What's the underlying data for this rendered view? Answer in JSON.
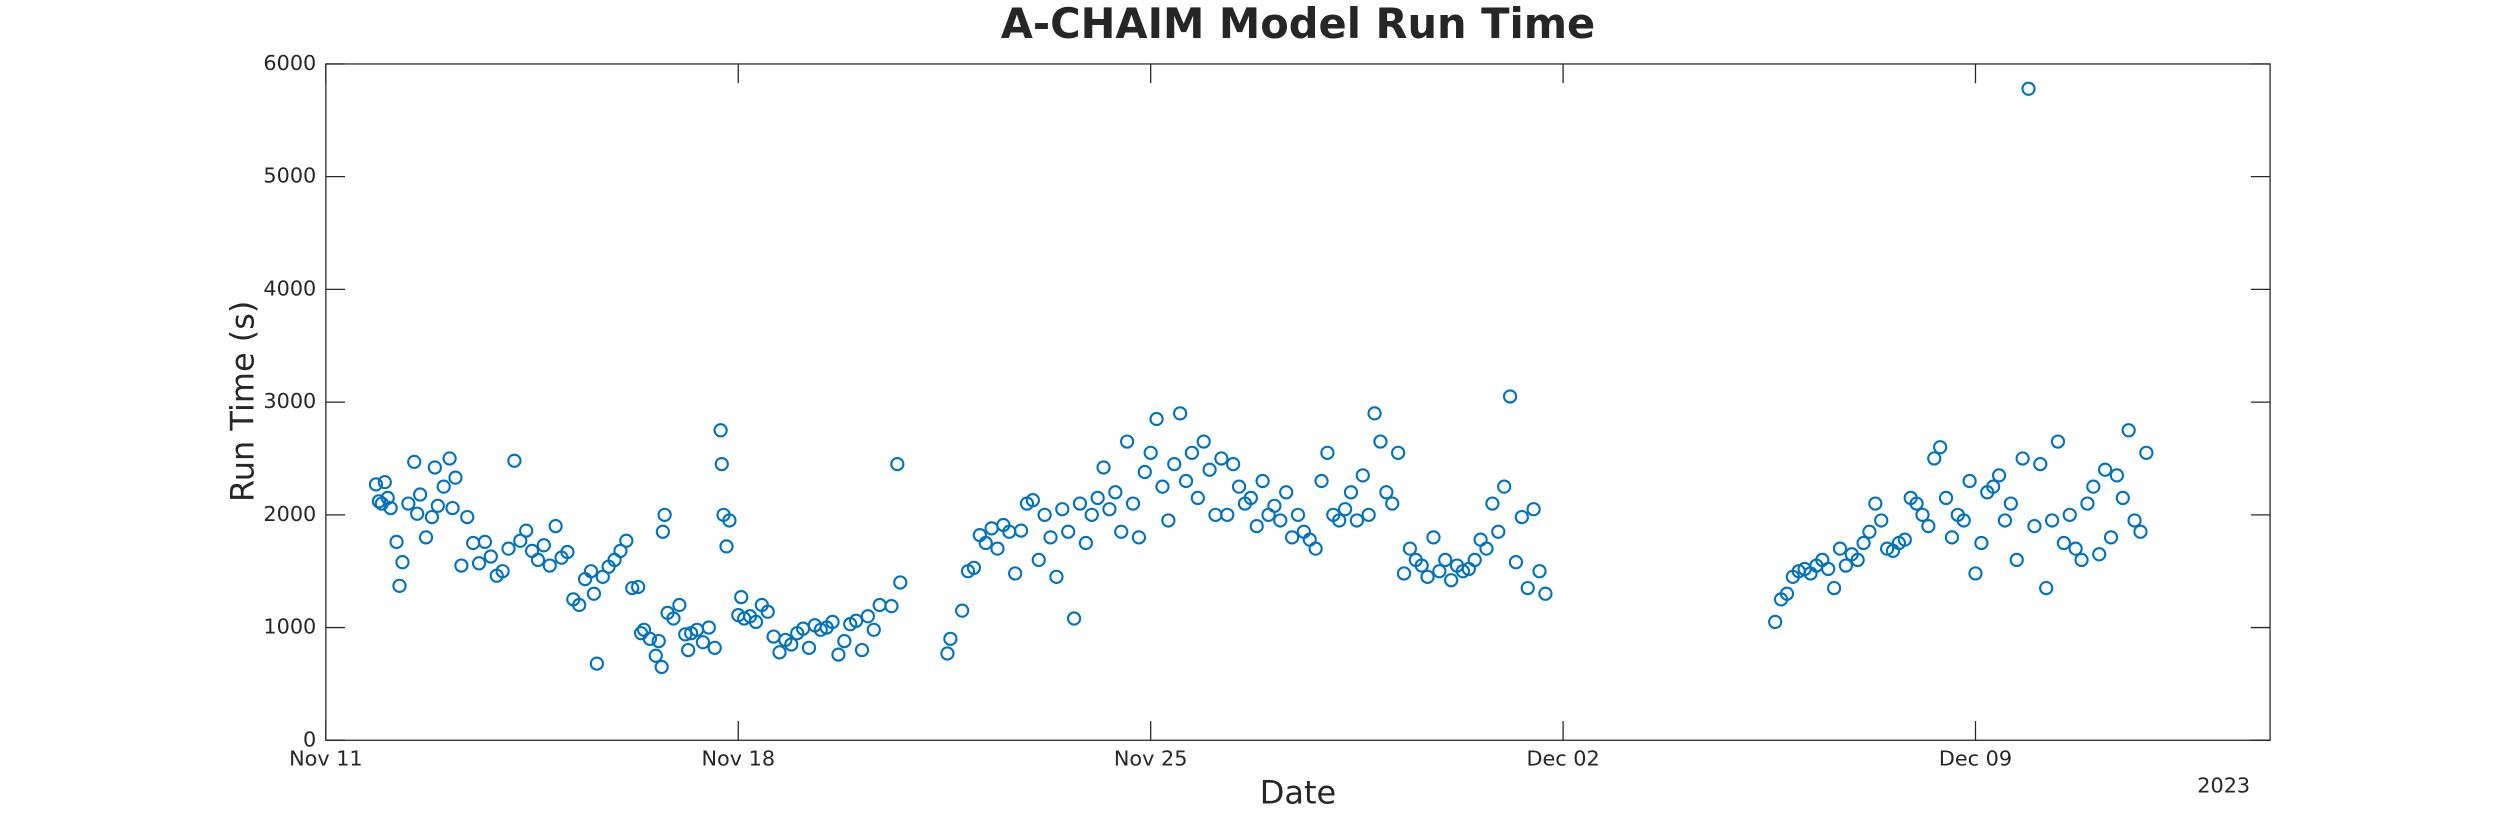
{
  "chart_data": {
    "type": "scatter",
    "title": "A-CHAIM Model Run Time",
    "x_label": "Date",
    "y_label": "Run Time (s)",
    "x_year_label": "2023",
    "xlim": [
      0,
      33
    ],
    "ylim": [
      0,
      6000
    ],
    "xticks": [
      {
        "value": 0,
        "label": "Nov 11"
      },
      {
        "value": 7,
        "label": "Nov 18"
      },
      {
        "value": 14,
        "label": "Nov 25"
      },
      {
        "value": 21,
        "label": "Dec 02"
      },
      {
        "value": 28,
        "label": "Dec 09"
      }
    ],
    "yticks": [
      0,
      1000,
      2000,
      3000,
      4000,
      5000,
      6000
    ],
    "grid": false,
    "series": [
      {
        "color": "#0072bd",
        "x": [
          0.85,
          0.9,
          0.95,
          1.0,
          1.05,
          1.1,
          1.2,
          1.25,
          1.3,
          1.4,
          1.5,
          1.55,
          1.6,
          1.7,
          1.8,
          1.85,
          1.9,
          2.0,
          2.1,
          2.15,
          2.2,
          2.3,
          2.4,
          2.5,
          2.6,
          2.7,
          2.8,
          2.9,
          3.0,
          3.1,
          3.2,
          3.3,
          3.4,
          3.5,
          3.6,
          3.7,
          3.8,
          3.9,
          4.0,
          4.1,
          4.2,
          4.3,
          4.4,
          4.5,
          4.55,
          4.6,
          4.7,
          4.8,
          4.9,
          5.0,
          5.1,
          5.2,
          5.3,
          5.35,
          5.4,
          5.5,
          5.6,
          5.65,
          5.7,
          5.72,
          5.75,
          5.8,
          5.9,
          6.0,
          6.1,
          6.15,
          6.2,
          6.3,
          6.4,
          6.5,
          6.6,
          6.7,
          6.72,
          6.75,
          6.8,
          6.85,
          7.0,
          7.05,
          7.1,
          7.2,
          7.3,
          7.4,
          7.5,
          7.6,
          7.7,
          7.8,
          7.9,
          8.0,
          8.1,
          8.2,
          8.3,
          8.4,
          8.5,
          8.6,
          8.7,
          8.8,
          8.9,
          9.0,
          9.1,
          9.2,
          9.3,
          9.4,
          9.6,
          9.7,
          9.75,
          10.55,
          10.6,
          10.8,
          10.9,
          11.0,
          11.1,
          11.2,
          11.3,
          11.4,
          11.5,
          11.6,
          11.7,
          11.8,
          11.9,
          12.0,
          12.1,
          12.2,
          12.3,
          12.4,
          12.5,
          12.6,
          12.7,
          12.8,
          12.9,
          13.0,
          13.1,
          13.2,
          13.3,
          13.4,
          13.5,
          13.6,
          13.7,
          13.8,
          13.9,
          14.0,
          14.1,
          14.2,
          14.3,
          14.4,
          14.5,
          14.6,
          14.7,
          14.8,
          14.9,
          15.0,
          15.1,
          15.2,
          15.3,
          15.4,
          15.5,
          15.6,
          15.7,
          15.8,
          15.9,
          16.0,
          16.1,
          16.2,
          16.3,
          16.4,
          16.5,
          16.6,
          16.7,
          16.8,
          16.9,
          17.0,
          17.1,
          17.2,
          17.3,
          17.4,
          17.5,
          17.6,
          17.7,
          17.8,
          17.9,
          18.0,
          18.1,
          18.2,
          18.3,
          18.4,
          18.5,
          18.6,
          18.7,
          18.8,
          18.9,
          19.0,
          19.1,
          19.2,
          19.3,
          19.4,
          19.5,
          19.6,
          19.7,
          19.8,
          19.9,
          20.0,
          20.1,
          20.2,
          20.3,
          20.4,
          20.5,
          20.6,
          20.7,
          24.6,
          24.7,
          24.8,
          24.9,
          25.0,
          25.1,
          25.2,
          25.3,
          25.4,
          25.5,
          25.6,
          25.7,
          25.8,
          25.9,
          26.0,
          26.1,
          26.2,
          26.3,
          26.4,
          26.5,
          26.6,
          26.7,
          26.8,
          26.9,
          27.0,
          27.1,
          27.2,
          27.3,
          27.4,
          27.5,
          27.6,
          27.7,
          27.8,
          27.9,
          28.0,
          28.1,
          28.2,
          28.3,
          28.4,
          28.5,
          28.6,
          28.7,
          28.8,
          28.9,
          29.0,
          29.1,
          29.2,
          29.3,
          29.4,
          29.5,
          29.6,
          29.7,
          29.8,
          29.9,
          30.0,
          30.1,
          30.2,
          30.3,
          30.4,
          30.5,
          30.6,
          30.7,
          30.8,
          30.9
        ],
        "values": [
          2270,
          2120,
          2100,
          2290,
          2150,
          2060,
          1760,
          1370,
          1580,
          2100,
          2470,
          2010,
          2180,
          1800,
          1980,
          2420,
          2080,
          2250,
          2500,
          2060,
          2330,
          1550,
          1980,
          1750,
          1570,
          1760,
          1630,
          1460,
          1500,
          1700,
          2480,
          1770,
          1860,
          1680,
          1600,
          1730,
          1550,
          1900,
          1620,
          1670,
          1250,
          1200,
          1430,
          1500,
          1300,
          680,
          1450,
          1540,
          1600,
          1680,
          1770,
          1350,
          1360,
          950,
          980,
          900,
          750,
          880,
          650,
          1850,
          2000,
          1130,
          1080,
          1200,
          940,
          800,
          950,
          980,
          870,
          1000,
          820,
          2750,
          2450,
          2000,
          1720,
          1950,
          1110,
          1270,
          1080,
          1100,
          1050,
          1200,
          1140,
          920,
          780,
          890,
          850,
          950,
          990,
          820,
          1020,
          980,
          1000,
          1050,
          760,
          880,
          1030,
          1060,
          800,
          1100,
          980,
          1200,
          1190,
          2450,
          1400,
          770,
          900,
          1150,
          1500,
          1530,
          1820,
          1750,
          1880,
          1700,
          1910,
          1850,
          1480,
          1860,
          2100,
          2130,
          1600,
          2000,
          1800,
          1450,
          2050,
          1850,
          1080,
          2100,
          1750,
          2000,
          2150,
          2420,
          2050,
          2200,
          1850,
          2650,
          2100,
          1800,
          2380,
          2550,
          2850,
          2250,
          1950,
          2450,
          2900,
          2300,
          2550,
          2150,
          2650,
          2400,
          2000,
          2500,
          2000,
          2450,
          2250,
          2100,
          2150,
          1900,
          2300,
          2000,
          2080,
          1950,
          2200,
          1800,
          2000,
          1850,
          1780,
          1700,
          2300,
          2550,
          2000,
          1950,
          2050,
          2200,
          1950,
          2350,
          2000,
          2900,
          2650,
          2200,
          2100,
          2550,
          1480,
          1700,
          1600,
          1550,
          1450,
          1800,
          1500,
          1600,
          1420,
          1550,
          1500,
          1520,
          1600,
          1780,
          1700,
          2100,
          1850,
          2250,
          3050,
          1580,
          1980,
          1350,
          2050,
          1500,
          1300,
          1050,
          1250,
          1300,
          1450,
          1500,
          1520,
          1480,
          1550,
          1600,
          1520,
          1350,
          1700,
          1550,
          1650,
          1600,
          1750,
          1850,
          2100,
          1950,
          1700,
          1680,
          1750,
          1780,
          2150,
          2100,
          2000,
          1900,
          2500,
          2600,
          2150,
          1800,
          2000,
          1950,
          2300,
          1480,
          1750,
          2200,
          2250,
          2350,
          1950,
          2100,
          1600,
          2500,
          5780,
          1900,
          2450,
          1350,
          1950,
          2650,
          1750,
          2000,
          1700,
          1600,
          2100,
          2250,
          1650,
          2400,
          1800,
          2350,
          2150,
          2750,
          1950,
          1850,
          2550
        ]
      }
    ]
  }
}
